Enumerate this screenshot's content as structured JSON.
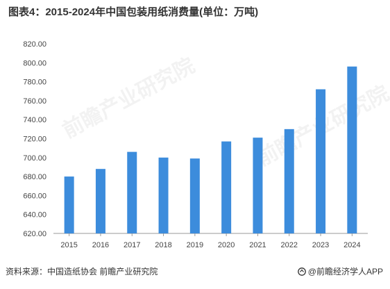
{
  "header": {
    "title": "图表4：2015-2024年中国包装用纸消费量(单位：万吨)"
  },
  "footer": {
    "source": "资料来源：中国造纸协会 前瞻产业研究院",
    "brand": "@前瞻经济学人APP"
  },
  "watermark": {
    "text": "前瞻产业研究院"
  },
  "colors": {
    "bar": "#3c8cdc",
    "axis": "#999999",
    "tick_text": "#444444"
  },
  "icons": {
    "brand": "qianzhan-logo-icon"
  },
  "chart_data": {
    "type": "bar",
    "title": "图表4：2015-2024年中国包装用纸消费量(单位：万吨)",
    "xlabel": "",
    "ylabel": "",
    "categories": [
      "2015",
      "2016",
      "2017",
      "2018",
      "2019",
      "2020",
      "2021",
      "2022",
      "2023",
      "2024"
    ],
    "values": [
      680,
      688,
      706,
      700,
      699,
      717,
      721,
      730,
      772,
      796
    ],
    "ylim": [
      620,
      820
    ],
    "yticks": [
      620,
      640,
      660,
      680,
      700,
      720,
      740,
      760,
      780,
      800,
      820
    ],
    "ytick_labels": [
      "620.00",
      "640.00",
      "660.00",
      "680.00",
      "700.00",
      "720.00",
      "740.00",
      "760.00",
      "780.00",
      "800.00",
      "820.00"
    ],
    "grid": false,
    "legend": "none"
  }
}
